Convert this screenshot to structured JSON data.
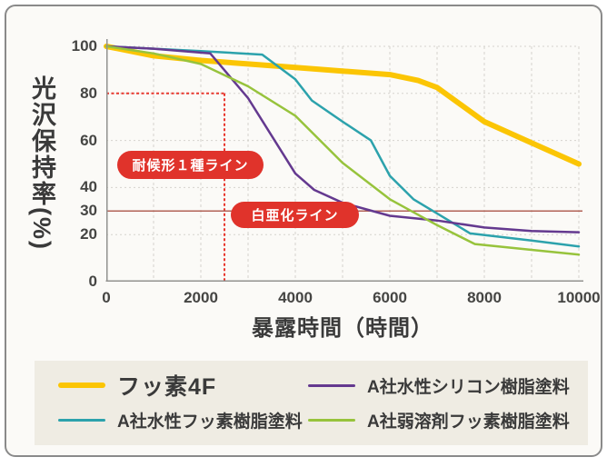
{
  "chart_data": {
    "type": "line",
    "title": "",
    "xlabel": "暴露時間（時間）",
    "ylabel": "光沢保持率(%)",
    "xlim": [
      0,
      10000
    ],
    "ylim": [
      0,
      100
    ],
    "x_ticks": [
      0,
      2000,
      4000,
      6000,
      8000,
      10000
    ],
    "y_ticks": [
      100,
      80,
      60,
      40,
      30,
      20,
      0
    ],
    "grid_x": [
      1000,
      2000,
      3000,
      4000,
      5000,
      6000,
      7000,
      8000,
      9000,
      10000
    ],
    "grid_y": [
      20,
      40,
      60,
      80,
      100
    ],
    "grid": true,
    "legend_position": "bottom",
    "axis_color": "#92928f",
    "grid_color": "#d5d3cd",
    "series": [
      {
        "name": "フッ素4F",
        "color": "#fbc504",
        "stroke_width": 6,
        "points": [
          [
            0,
            100
          ],
          [
            1000,
            96
          ],
          [
            2000,
            94
          ],
          [
            3000,
            92.5
          ],
          [
            4000,
            91
          ],
          [
            5000,
            89.5
          ],
          [
            6000,
            88
          ],
          [
            6600,
            85.5
          ],
          [
            7000,
            82.5
          ],
          [
            8000,
            68
          ],
          [
            9000,
            59
          ],
          [
            10000,
            50
          ]
        ]
      },
      {
        "name": "A社水性フッ素樹脂塗料",
        "color": "#2ca2ac",
        "stroke_width": 2.5,
        "points": [
          [
            0,
            100
          ],
          [
            1000,
            99
          ],
          [
            2000,
            98
          ],
          [
            3300,
            96.5
          ],
          [
            4000,
            86
          ],
          [
            4350,
            77
          ],
          [
            5000,
            68
          ],
          [
            5600,
            60
          ],
          [
            6000,
            45
          ],
          [
            6500,
            35
          ],
          [
            7000,
            29
          ],
          [
            7700,
            20.5
          ],
          [
            9000,
            17.5
          ],
          [
            10000,
            15
          ]
        ]
      },
      {
        "name": "A社水性シリコン樹脂塗料",
        "color": "#64398f",
        "stroke_width": 2.5,
        "points": [
          [
            0,
            100
          ],
          [
            1000,
            99
          ],
          [
            2200,
            97
          ],
          [
            3000,
            78
          ],
          [
            4000,
            46
          ],
          [
            4400,
            39
          ],
          [
            5000,
            33.5
          ],
          [
            6000,
            28
          ],
          [
            7000,
            26
          ],
          [
            8000,
            23
          ],
          [
            9000,
            21.5
          ],
          [
            10000,
            21
          ]
        ]
      },
      {
        "name": "A社弱溶剤フッ素樹脂塗料",
        "color": "#97c33c",
        "stroke_width": 2.5,
        "points": [
          [
            0,
            100
          ],
          [
            1000,
            97
          ],
          [
            2000,
            92.5
          ],
          [
            3000,
            83
          ],
          [
            4000,
            70.5
          ],
          [
            5000,
            50.5
          ],
          [
            6000,
            35
          ],
          [
            7000,
            24
          ],
          [
            7800,
            16
          ],
          [
            9000,
            13.5
          ],
          [
            10000,
            11.5
          ]
        ]
      }
    ],
    "annotations": [
      {
        "label": "耐候形１種ライン",
        "value": 80,
        "x_extent": 2500,
        "style": "dotted",
        "color": "#e8382f",
        "badge_color": "#e0332b"
      },
      {
        "label": "白亜化ライン",
        "value": 30,
        "style": "solid",
        "color": "#b26257",
        "badge_color": "#e0332b"
      }
    ]
  }
}
